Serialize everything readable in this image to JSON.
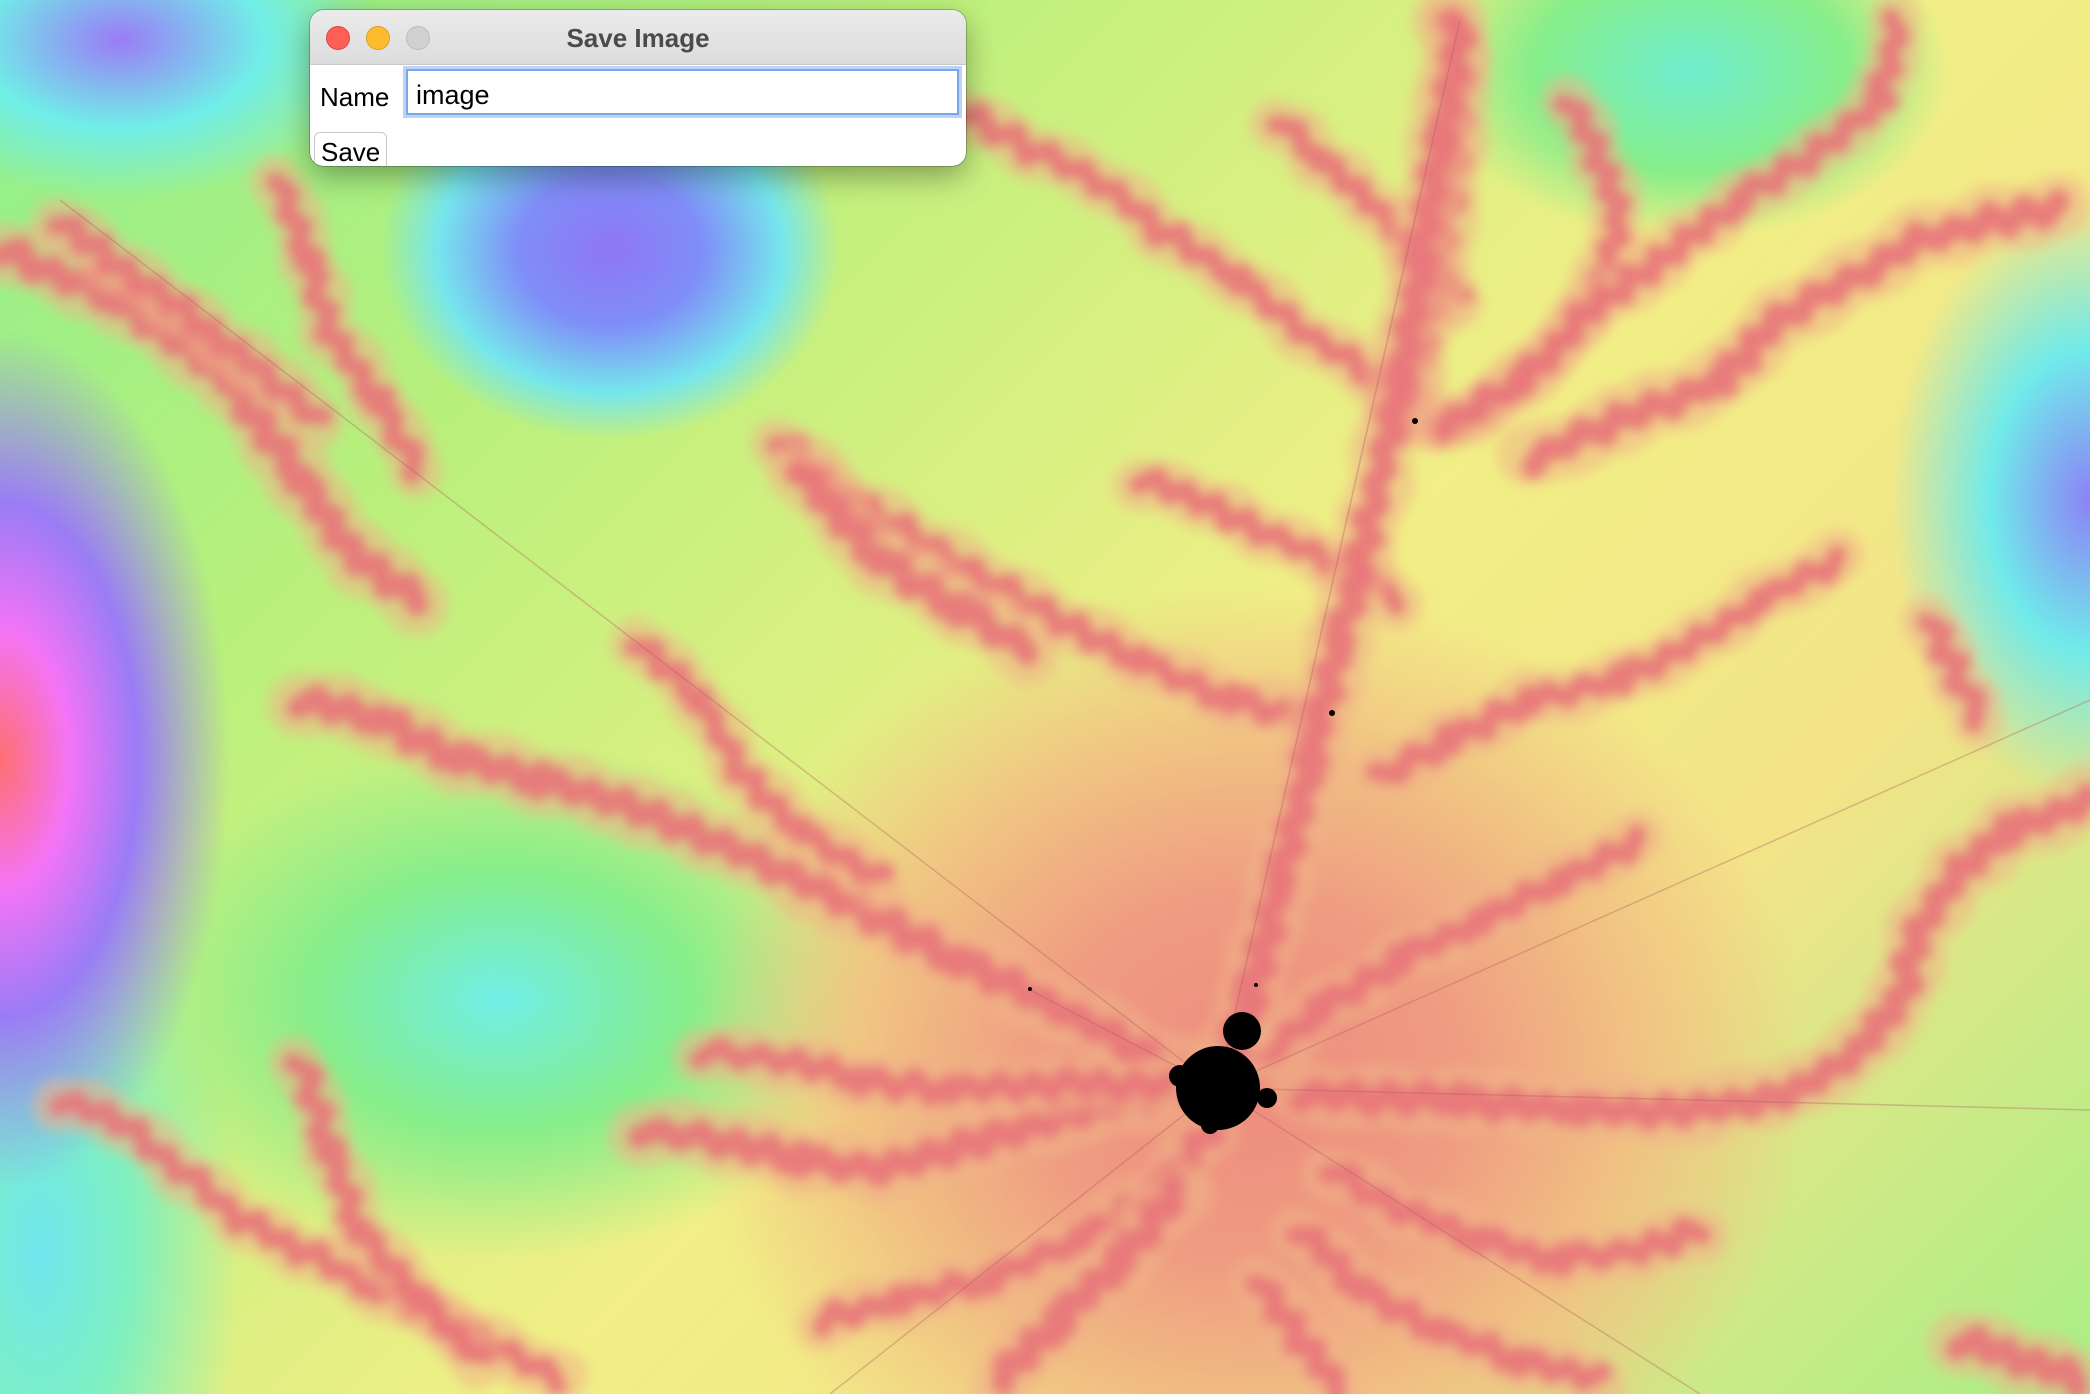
{
  "window": {
    "title": "Save Image",
    "controls": {
      "close_color": "#fe5f57",
      "minimize_color": "#febb2e",
      "maximize_color": "#d1d1d1"
    }
  },
  "form": {
    "name_label": "Name",
    "name_value": "image",
    "save_label": "Save"
  },
  "background": {
    "description_icon": "mandelbrot-fractal",
    "filament_color": "#e8747a",
    "set_color": "#000000"
  }
}
